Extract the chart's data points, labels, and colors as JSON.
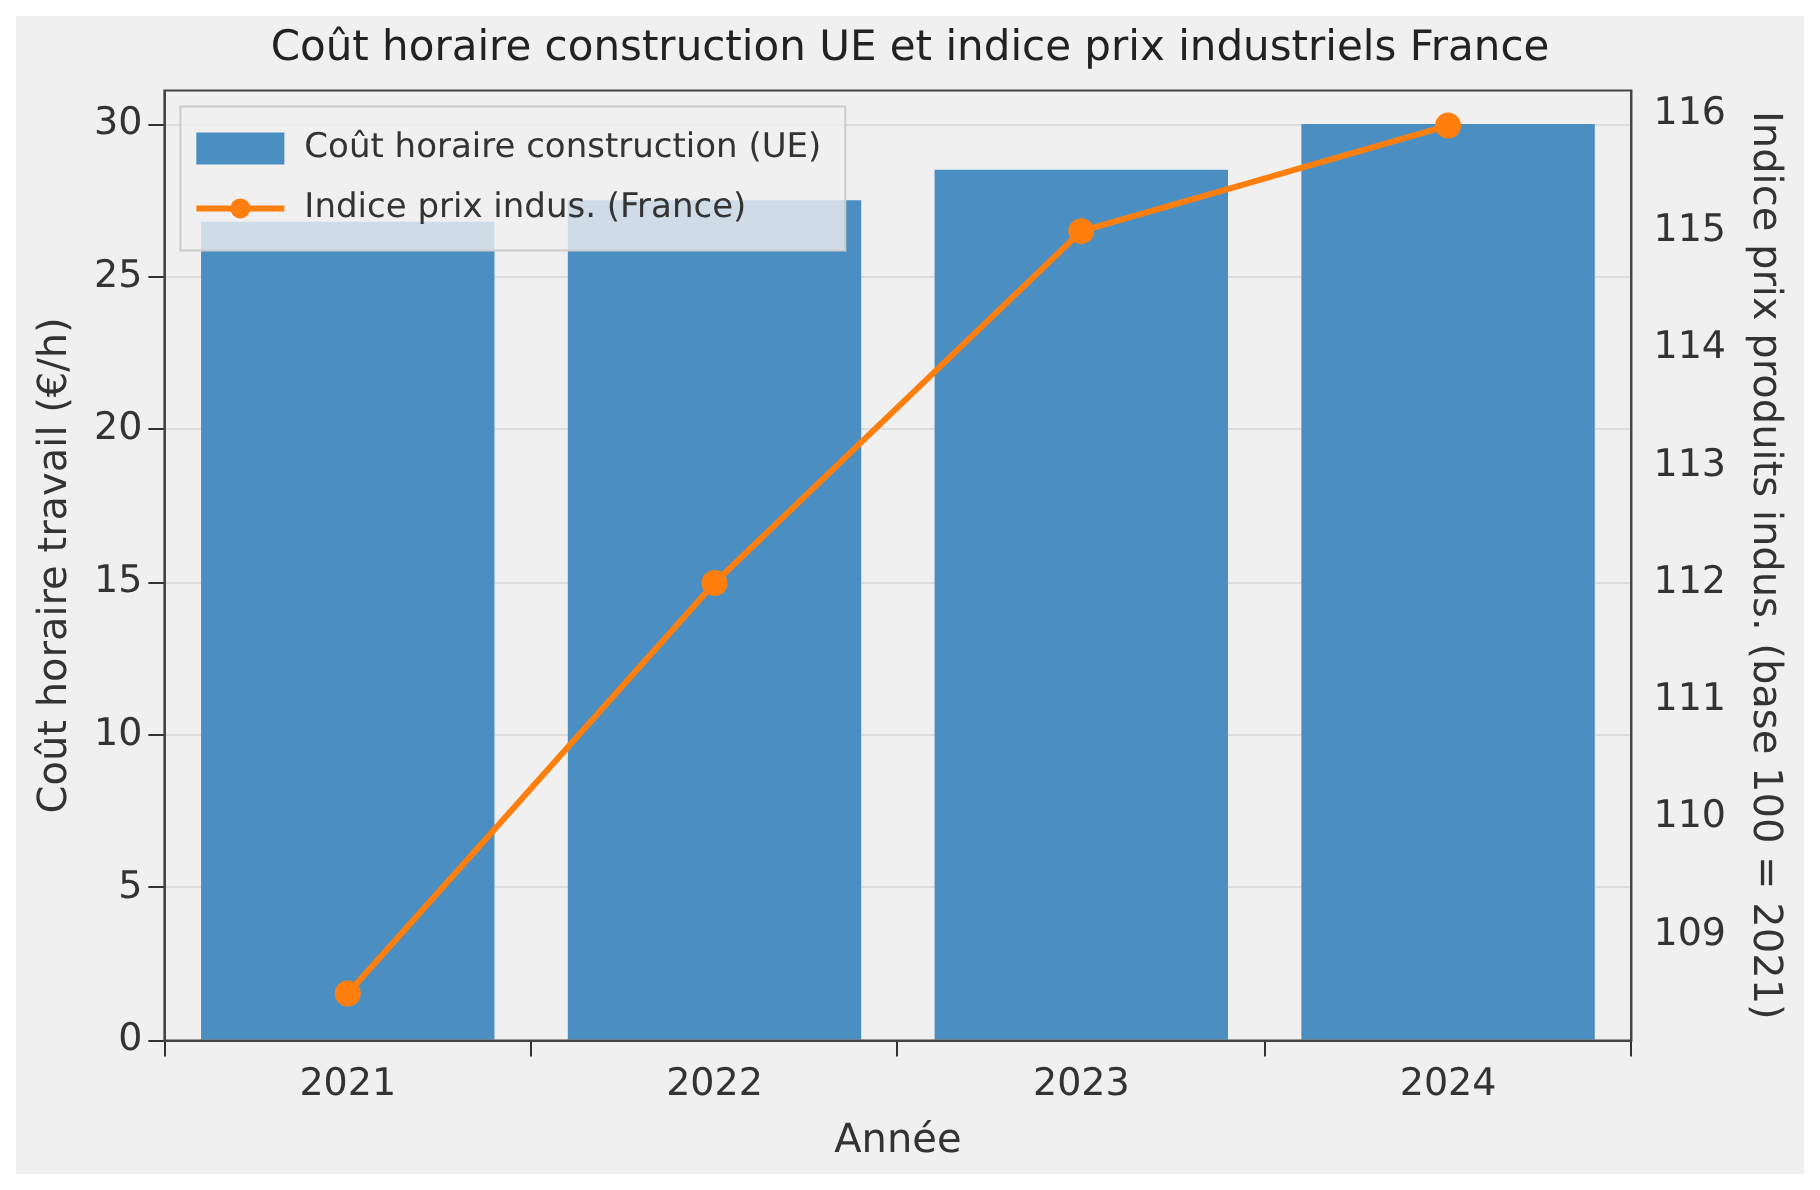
{
  "chart_data": {
    "type": "bar",
    "title": "Coût horaire construction UE et indice prix industriels France",
    "xlabel": "Année",
    "ylabel": "Coût horaire travail (€/h)",
    "y2label": "Indice prix produits indus. (base 100 = 2021)",
    "categories": [
      "2021",
      "2022",
      "2023",
      "2024"
    ],
    "series": [
      {
        "name": "Coût horaire construction (UE)",
        "color": "#4a8ec2",
        "values": [
          26.8,
          27.5,
          28.5,
          30.0
        ]
      },
      {
        "name": "Indice prix indus. (France)",
        "type": "line",
        "axis": "y2",
        "color": "#ff7f0e",
        "values": [
          108.5,
          112.0,
          115.0,
          115.9
        ]
      }
    ],
    "ylim": [
      0,
      31.1
    ],
    "yticks": [
      0,
      5,
      10,
      15,
      20,
      25,
      30
    ],
    "y2lim": [
      108.1,
      116.2
    ],
    "y2ticks": [
      109,
      110,
      111,
      112,
      113,
      114,
      115,
      116
    ],
    "grid": "y",
    "legend": "top left",
    "marker": "circle"
  }
}
